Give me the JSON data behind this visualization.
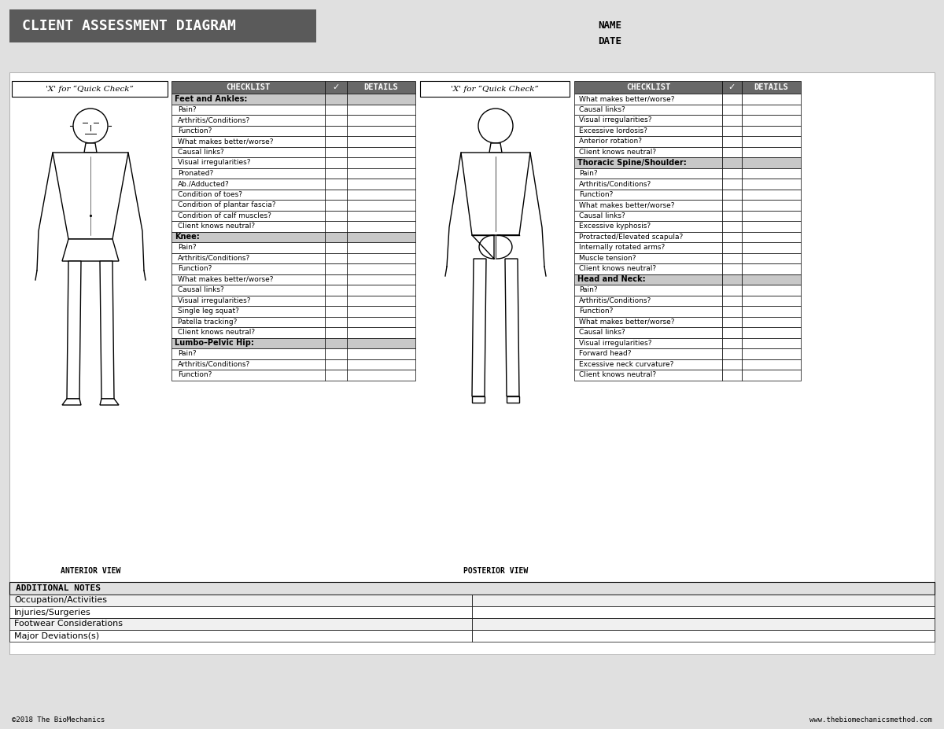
{
  "title": "CLIENT ASSESSMENT DIAGRAM",
  "title_bg": "#5a5a5a",
  "title_color": "#ffffff",
  "page_bg": "#e0e0e0",
  "content_bg": "#ffffff",
  "checklist_header_bg": "#686868",
  "checklist_header_color": "#ffffff",
  "section_header_bg": "#c8c8c8",
  "row_bg_white": "#ffffff",
  "row_bg_alt": "#f0f0f0",
  "name_label": "NAME",
  "date_label": "DATE",
  "left_box_title": "'X' for “Quick Check”",
  "right_box_title": "'X' for “Quick Check”",
  "check_col": "✓",
  "details_col": "DETAILS",
  "checklist_col": "CHECKLIST",
  "anterior_label": "ANTERIOR VIEW",
  "posterior_label": "POSTERIOR VIEW",
  "left_sections": [
    {
      "name": "Feet and Ankles:",
      "items": [
        "Pain?",
        "Arthritis/Conditions?",
        "Function?",
        "What makes better/worse?",
        "Causal links?",
        "Visual irregularities?",
        "Pronated?",
        "Ab./Adducted?",
        "Condition of toes?",
        "Condition of plantar fascia?",
        "Condition of calf muscles?",
        "Client knows neutral?"
      ]
    },
    {
      "name": "Knee:",
      "items": [
        "Pain?",
        "Arthritis/Conditions?",
        "Function?",
        "What makes better/worse?",
        "Causal links?",
        "Visual irregularities?",
        "Single leg squat?",
        "Patella tracking?",
        "Client knows neutral?"
      ]
    },
    {
      "name": "Lumbo–Pelvic Hip:",
      "items": [
        "Pain?",
        "Arthritis/Conditions?",
        "Function?"
      ]
    }
  ],
  "right_sections": [
    {
      "name": null,
      "items": [
        "What makes better/worse?",
        "Causal links?",
        "Visual irregularities?",
        "Excessive lordosis?",
        "Anterior rotation?",
        "Client knows neutral?"
      ]
    },
    {
      "name": "Thoracic Spine/Shoulder:",
      "items": [
        "Pain?",
        "Arthritis/Conditions?",
        "Function?",
        "What makes better/worse?",
        "Causal links?",
        "Excessive kyphosis?",
        "Protracted/Elevated scapula?",
        "Internally rotated arms?",
        "Muscle tension?",
        "Client knows neutral?"
      ]
    },
    {
      "name": "Head and Neck:",
      "items": [
        "Pain?",
        "Arthritis/Conditions?",
        "Function?",
        "What makes better/worse?",
        "Causal links?",
        "Visual irregularities?",
        "Forward head?",
        "Excessive neck curvature?",
        "Client knows neutral?"
      ]
    }
  ],
  "additional_notes_title": "ADDITIONAL NOTES",
  "additional_notes_rows": [
    "Occupation/Activities",
    "Injuries/Surgeries",
    "Footwear Considerations",
    "Major Deviations(s)"
  ],
  "footer_left": "©2018 The BioMechanics",
  "footer_right": "www.thebiomechanicsmethod.com"
}
